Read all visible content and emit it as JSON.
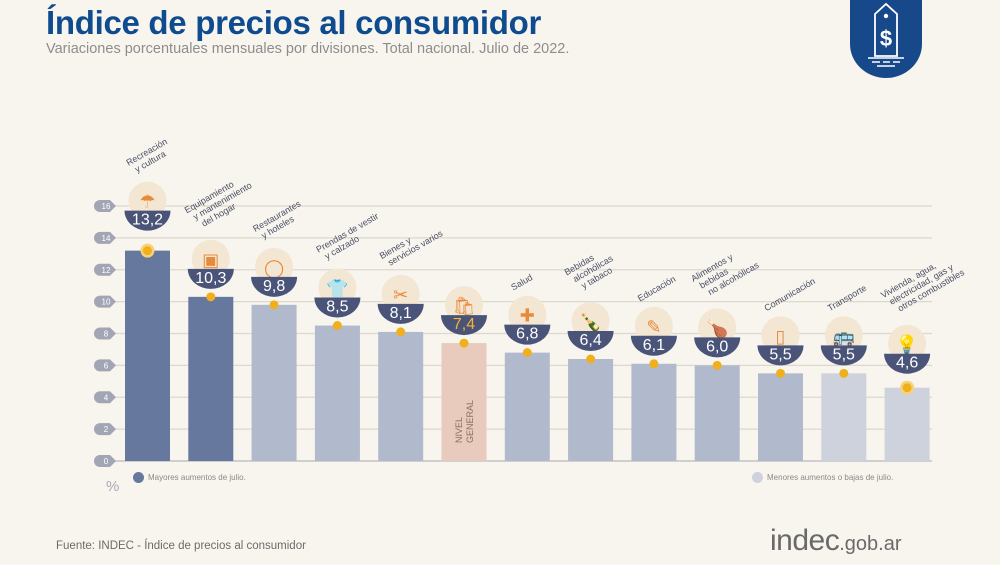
{
  "header": {
    "title": "Índice de precios al consumidor",
    "subtitle": "Variaciones porcentuales mensuales por divisiones. Total nacional. Julio de 2022."
  },
  "badge": {
    "icon": "price-tag-dollar-icon",
    "color": "#17498a"
  },
  "legend": {
    "major": {
      "label": "Mayores aumentos de julio.",
      "color": "#66789e"
    },
    "minor": {
      "label": "Menores aumentos o bajas de julio.",
      "color": "#cdd2dc"
    }
  },
  "unit_label": "%",
  "footer": {
    "source": "Fuente: INDEC - Índice de precios al consumidor",
    "brand_main": "indec",
    "brand_suffix": ".gob.ar"
  },
  "colors": {
    "major": "#66789e",
    "mid": "#b1b9cd",
    "minor": "#cdd2dc",
    "general": "#e8cbbd",
    "bowl": "#4a5378",
    "marker": "#f0b01e",
    "grid": "#dcd8cf",
    "axis_tick": "#a2a6b4",
    "label_text": "#4a4f66",
    "icon_accent": "#e88a3c"
  },
  "chart_data": {
    "type": "bar",
    "title": "Índice de precios al consumidor",
    "subtitle": "Variaciones porcentuales mensuales por divisiones. Total nacional. Julio de 2022.",
    "xlabel": "",
    "ylabel": "%",
    "ylim": [
      0,
      16
    ],
    "yticks": [
      0,
      2,
      4,
      6,
      8,
      10,
      12,
      14,
      16
    ],
    "grid": true,
    "legend_position": "bottom",
    "categories": [
      "Recreación y cultura",
      "Equipamiento y mantenimiento del hogar",
      "Restaurantes y hoteles",
      "Prendas de vestir y calzado",
      "Bienes y servicios varios",
      "Nivel general",
      "Salud",
      "Bebidas alcohólicas y tabaco",
      "Educación",
      "Alimentos y bebidas no alcohólicas",
      "Comunicación",
      "Transporte",
      "Vivienda, agua, electricidad, gas y otros combustibles"
    ],
    "category_label_lines": [
      [
        "Recreación",
        "y cultura"
      ],
      [
        "Equipamiento",
        "y mantenimiento",
        "del hogar"
      ],
      [
        "Restaurantes",
        "y hoteles"
      ],
      [
        "Prendas de vestir",
        "y calzado"
      ],
      [
        "Bienes y",
        "servicios varios"
      ],
      [
        "NIVEL",
        "GENERAL"
      ],
      [
        "Salud"
      ],
      [
        "Bebidas",
        "alcohólicas",
        "y tabaco"
      ],
      [
        "Educación"
      ],
      [
        "Alimentos y",
        "bebidas",
        "no alcohólicas"
      ],
      [
        "Comunicación"
      ],
      [
        "Transporte"
      ],
      [
        "Vivienda, agua,",
        "electricidad, gas y",
        "otros combustibles"
      ]
    ],
    "values": [
      13.2,
      10.3,
      9.8,
      8.5,
      8.1,
      7.4,
      6.8,
      6.4,
      6.1,
      6.0,
      5.5,
      5.5,
      4.6
    ],
    "value_labels": [
      "13,2",
      "10,3",
      "9,8",
      "8,5",
      "8,1",
      "7,4",
      "6,8",
      "6,4",
      "6,1",
      "6,0",
      "5,5",
      "5,5",
      "4,6"
    ],
    "groups": [
      "major",
      "major",
      "mid",
      "mid",
      "mid",
      "general",
      "mid",
      "mid",
      "mid",
      "mid",
      "mid",
      "minor",
      "minor"
    ],
    "icons": [
      "umbrella-sun-icon",
      "washing-machine-icon",
      "plate-cutlery-icon",
      "tshirt-icon",
      "comb-scissors-icon",
      "shopping-bag-icon",
      "medical-cross-icon",
      "bottle-glass-icon",
      "notebook-pencil-icon",
      "chicken-bread-icon",
      "smartphone-icon",
      "bus-card-icon",
      "faucet-lightbulb-icon"
    ],
    "highlighted": [
      0,
      12
    ]
  }
}
